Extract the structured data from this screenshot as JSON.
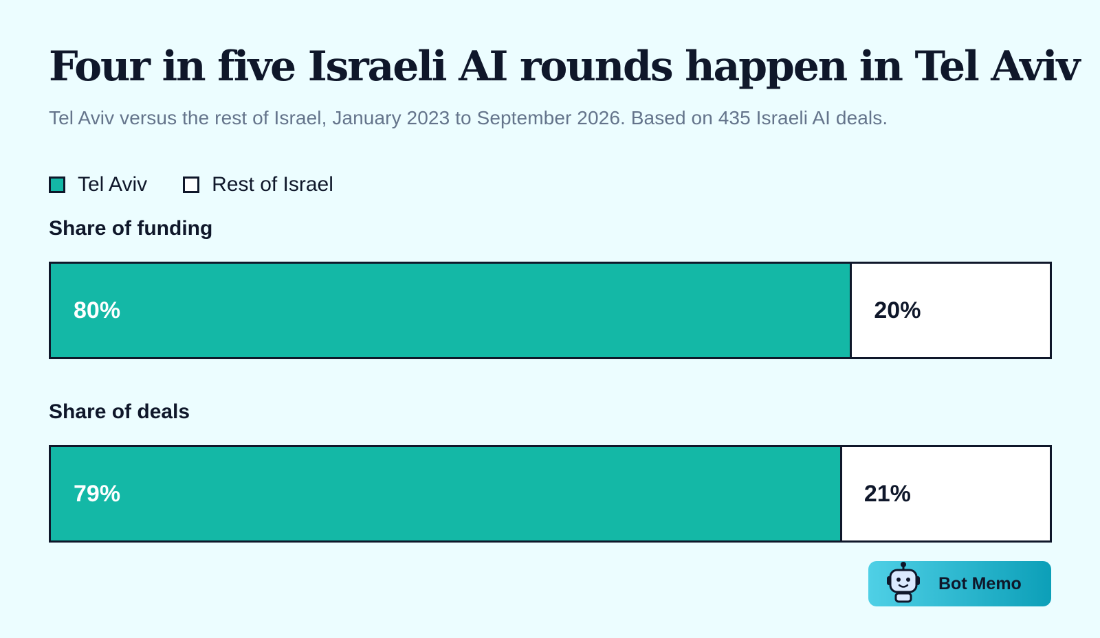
{
  "chart_data": {
    "type": "bar",
    "stacked": true,
    "orientation": "horizontal",
    "title": "Four in five Israeli AI rounds happen in Tel Aviv",
    "subtitle": "Tel Aviv versus the rest of Israel, January 2023 to September 2026. Based on 435 Israeli AI deals.",
    "legend": {
      "placement": "top-left",
      "entries": [
        "Tel Aviv",
        "Rest of Israel"
      ]
    },
    "categories": [
      "Share of funding",
      "Share of deals"
    ],
    "series": [
      {
        "name": "Tel Aviv",
        "values": [
          80,
          79
        ],
        "labels": [
          "80%",
          "79%"
        ],
        "color": "#14b8a6"
      },
      {
        "name": "Rest of Israel",
        "values": [
          20,
          21
        ],
        "labels": [
          "20%",
          "21%"
        ],
        "color": "#ffffff"
      }
    ],
    "xlim": [
      0,
      100
    ],
    "unit": "%",
    "grid": false
  },
  "brand": {
    "name": "Bot Memo",
    "icon": "robot-icon"
  },
  "colors": {
    "background": "#ecfdff",
    "text": "#0f172a",
    "muted": "#64748b",
    "accent": "#14b8a6"
  }
}
